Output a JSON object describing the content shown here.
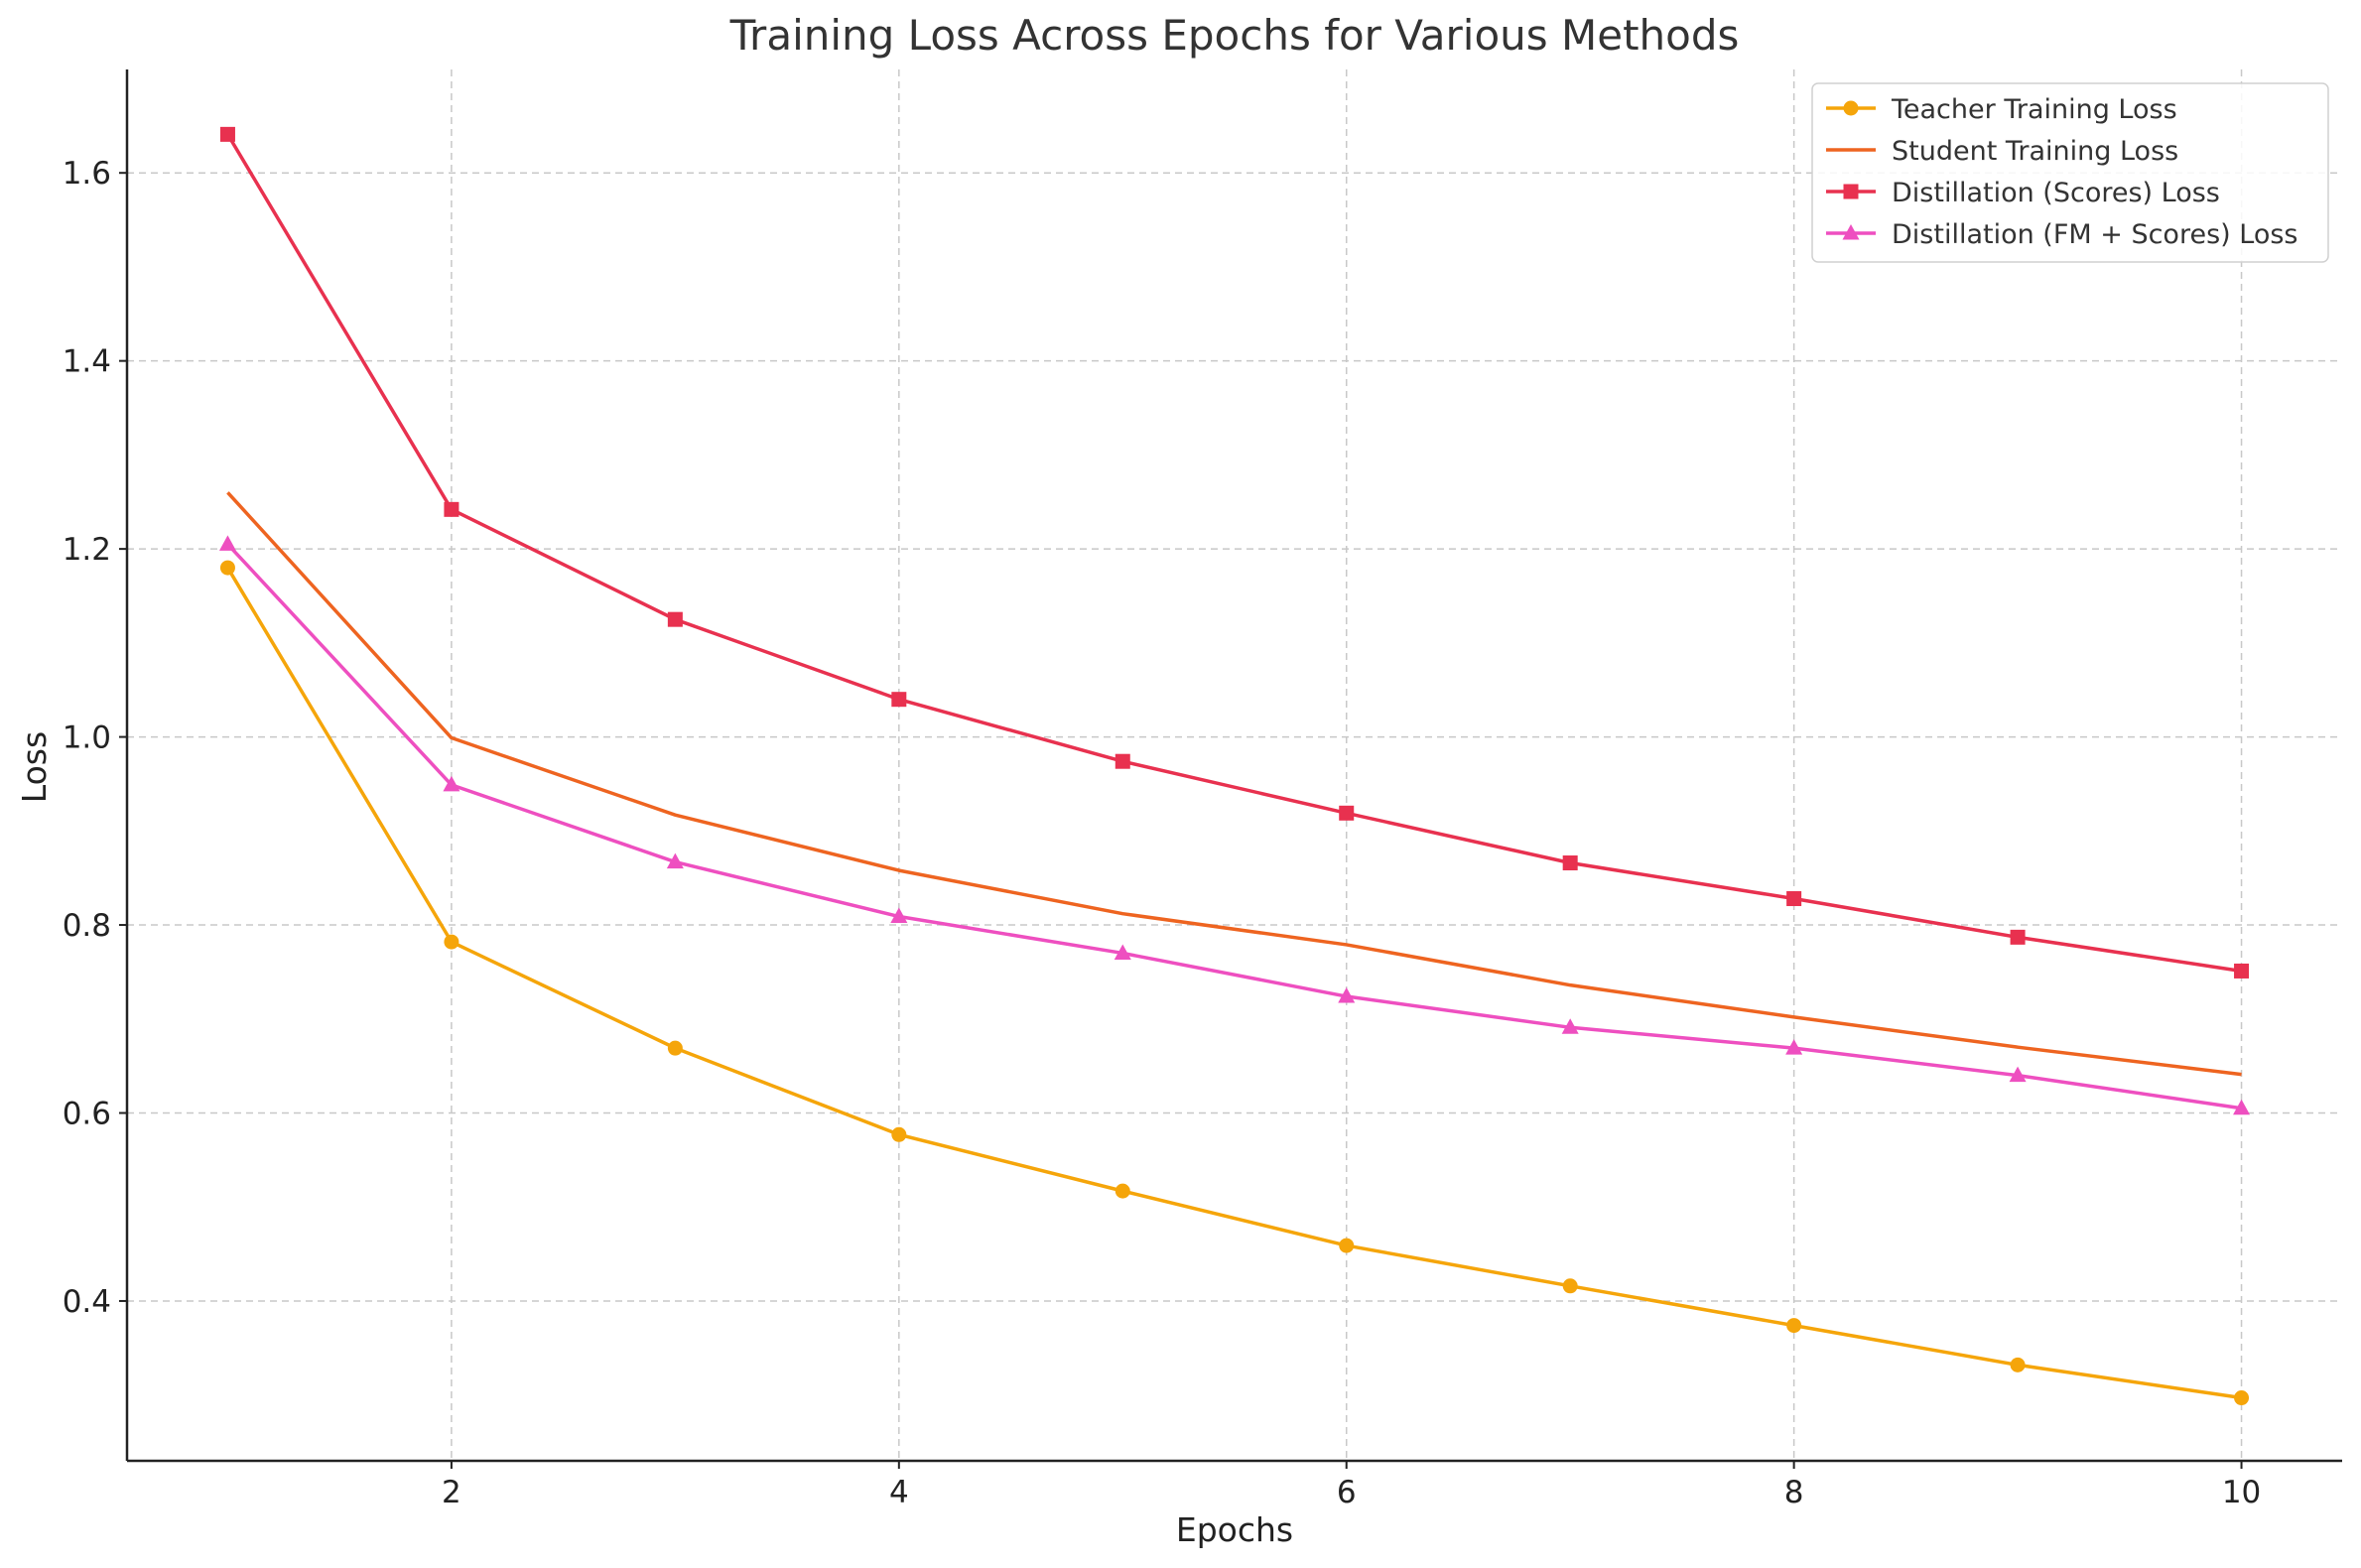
{
  "chart_data": {
    "type": "line",
    "title": "Training Loss Across Epochs for Various Methods",
    "xlabel": "Epochs",
    "ylabel": "Loss",
    "x": [
      1,
      2,
      3,
      4,
      5,
      6,
      7,
      8,
      9,
      10
    ],
    "xlim": [
      0.55,
      10.45
    ],
    "ylim": [
      0.23,
      1.71
    ],
    "xticks": [
      2,
      4,
      6,
      8,
      10
    ],
    "yticks": [
      0.4,
      0.6,
      0.8,
      1.0,
      1.2,
      1.4,
      1.6
    ],
    "xtick_labels": [
      "2",
      "4",
      "6",
      "8",
      "10"
    ],
    "ytick_labels": [
      "0.4",
      "0.6",
      "0.8",
      "1.0",
      "1.2",
      "1.4",
      "1.6"
    ],
    "grid": true,
    "legend_position": "top-right",
    "series": [
      {
        "name": "Teacher Training Loss",
        "color": "#f5a50a",
        "marker": "circle",
        "values": [
          1.18,
          0.782,
          0.669,
          0.577,
          0.517,
          0.459,
          0.416,
          0.374,
          0.332,
          0.297
        ]
      },
      {
        "name": "Student Training Loss",
        "color": "#ee6420",
        "marker": "none",
        "values": [
          1.26,
          0.999,
          0.917,
          0.858,
          0.812,
          0.779,
          0.736,
          0.702,
          0.67,
          0.641
        ]
      },
      {
        "name": "Distillation (Scores) Loss",
        "color": "#e8314f",
        "marker": "square",
        "values": [
          1.641,
          1.242,
          1.125,
          1.04,
          0.974,
          0.919,
          0.866,
          0.828,
          0.787,
          0.751
        ]
      },
      {
        "name": "Distillation (FM + Scores) Loss",
        "color": "#ee4fc0",
        "marker": "triangle",
        "values": [
          1.205,
          0.949,
          0.867,
          0.809,
          0.77,
          0.724,
          0.691,
          0.669,
          0.64,
          0.605
        ]
      }
    ]
  }
}
